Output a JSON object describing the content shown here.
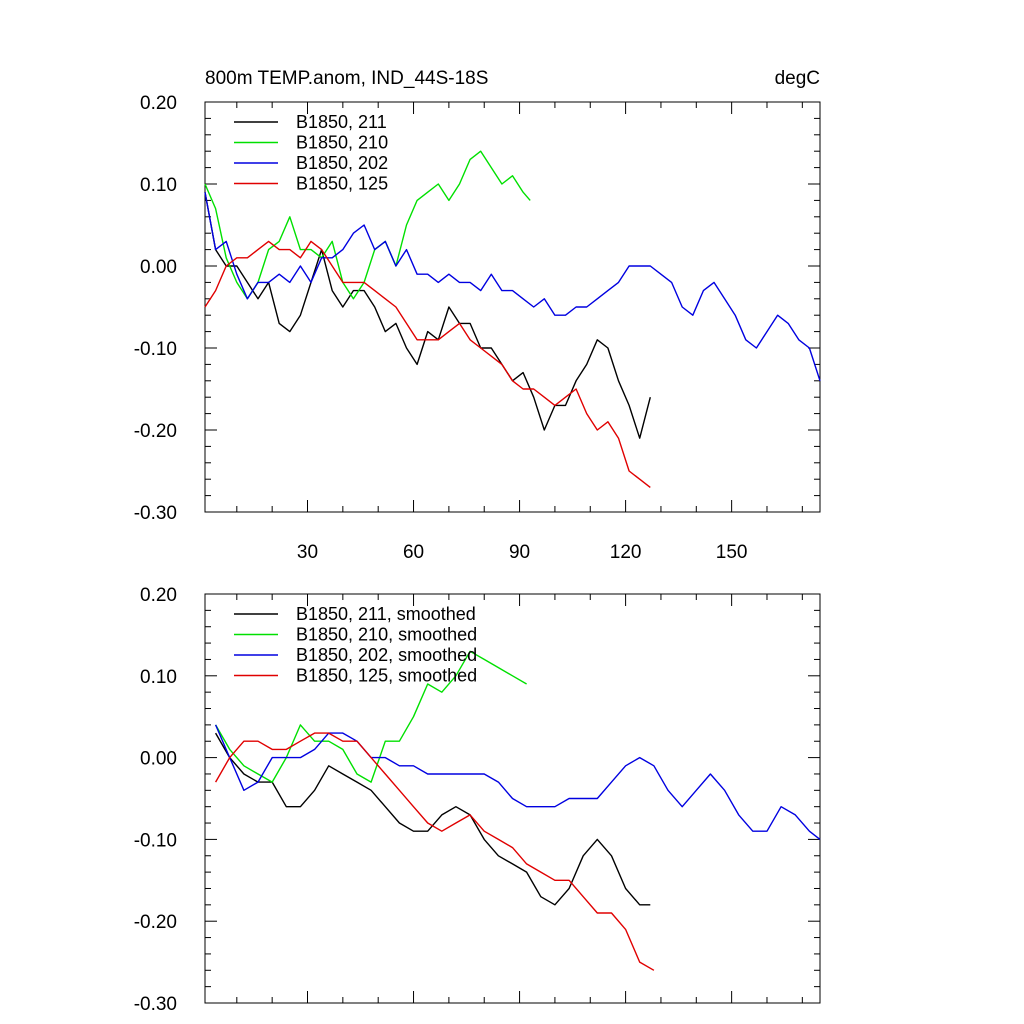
{
  "chart_data": [
    {
      "type": "line",
      "title": "800m TEMP.anom, IND_44S-18S",
      "units": "degC",
      "xlabel": "",
      "ylabel": "",
      "xlim": [
        1,
        175
      ],
      "ylim": [
        -0.3,
        0.2
      ],
      "xticks": [
        30,
        60,
        90,
        120,
        150
      ],
      "xtick_labels": [
        "30",
        "60",
        "90",
        "120",
        "150"
      ],
      "yticks": [
        0.2,
        0.1,
        0.0,
        -0.1,
        -0.2,
        -0.3
      ],
      "ytick_labels": [
        "0.20",
        "0.10",
        "0.00",
        "-0.10",
        "-0.20",
        "-0.30"
      ],
      "legend_position": "top-left",
      "series": [
        {
          "name": "B1850, 211",
          "color": "#000000",
          "x": [
            1,
            4,
            7,
            10,
            13,
            16,
            19,
            22,
            25,
            28,
            31,
            34,
            37,
            40,
            43,
            46,
            49,
            52,
            55,
            58,
            61,
            64,
            67,
            70,
            73,
            76,
            79,
            82,
            85,
            88,
            91,
            94,
            97,
            100,
            103,
            106,
            109,
            112,
            115,
            118,
            121,
            124,
            127
          ],
          "y": [
            0.09,
            0.02,
            0.0,
            0.0,
            -0.02,
            -0.04,
            -0.02,
            -0.07,
            -0.08,
            -0.06,
            -0.02,
            0.02,
            -0.03,
            -0.05,
            -0.03,
            -0.03,
            -0.05,
            -0.08,
            -0.07,
            -0.1,
            -0.12,
            -0.08,
            -0.09,
            -0.05,
            -0.07,
            -0.07,
            -0.1,
            -0.1,
            -0.12,
            -0.14,
            -0.13,
            -0.16,
            -0.2,
            -0.17,
            -0.17,
            -0.14,
            -0.12,
            -0.09,
            -0.1,
            -0.14,
            -0.17,
            -0.21,
            -0.16
          ]
        },
        {
          "name": "B1850, 210",
          "color": "#00e000",
          "x": [
            1,
            4,
            7,
            10,
            13,
            16,
            19,
            22,
            25,
            28,
            31,
            34,
            37,
            40,
            43,
            46,
            49,
            52,
            55,
            58,
            61,
            64,
            67,
            70,
            73,
            76,
            79,
            82,
            85,
            88,
            91,
            93
          ],
          "y": [
            0.1,
            0.07,
            0.01,
            -0.02,
            -0.04,
            -0.02,
            0.02,
            0.03,
            0.06,
            0.02,
            0.02,
            0.01,
            0.03,
            -0.02,
            -0.04,
            -0.02,
            0.02,
            0.03,
            0.0,
            0.05,
            0.08,
            0.09,
            0.1,
            0.08,
            0.1,
            0.13,
            0.14,
            0.12,
            0.1,
            0.11,
            0.09,
            0.08
          ]
        },
        {
          "name": "B1850, 202",
          "color": "#0000e0",
          "x": [
            1,
            4,
            7,
            10,
            13,
            16,
            19,
            22,
            25,
            28,
            31,
            34,
            37,
            40,
            43,
            46,
            49,
            52,
            55,
            58,
            61,
            64,
            67,
            70,
            73,
            76,
            79,
            82,
            85,
            88,
            91,
            94,
            97,
            100,
            103,
            106,
            109,
            112,
            115,
            118,
            121,
            124,
            127,
            130,
            133,
            136,
            139,
            142,
            145,
            148,
            151,
            154,
            157,
            160,
            163,
            166,
            169,
            172,
            175
          ],
          "y": [
            0.09,
            0.02,
            0.03,
            -0.01,
            -0.04,
            -0.02,
            -0.02,
            -0.01,
            -0.02,
            0.0,
            -0.02,
            0.01,
            0.01,
            0.02,
            0.04,
            0.05,
            0.02,
            0.03,
            0.0,
            0.02,
            -0.01,
            -0.01,
            -0.02,
            -0.01,
            -0.02,
            -0.02,
            -0.03,
            -0.01,
            -0.03,
            -0.03,
            -0.04,
            -0.05,
            -0.04,
            -0.06,
            -0.06,
            -0.05,
            -0.05,
            -0.04,
            -0.03,
            -0.02,
            0.0,
            0.0,
            0.0,
            -0.01,
            -0.02,
            -0.05,
            -0.06,
            -0.03,
            -0.02,
            -0.04,
            -0.06,
            -0.09,
            -0.1,
            -0.08,
            -0.06,
            -0.07,
            -0.09,
            -0.1,
            -0.14
          ]
        },
        {
          "name": "B1850, 125",
          "color": "#e00000",
          "x": [
            1,
            4,
            7,
            10,
            13,
            16,
            19,
            22,
            25,
            28,
            31,
            34,
            37,
            40,
            43,
            46,
            49,
            52,
            55,
            58,
            61,
            64,
            67,
            70,
            73,
            76,
            79,
            82,
            85,
            88,
            91,
            94,
            97,
            100,
            103,
            106,
            109,
            112,
            115,
            118,
            121,
            124,
            127
          ],
          "y": [
            -0.05,
            -0.03,
            0.0,
            0.01,
            0.01,
            0.02,
            0.03,
            0.02,
            0.02,
            0.01,
            0.03,
            0.02,
            0.0,
            -0.02,
            -0.02,
            -0.02,
            -0.03,
            -0.04,
            -0.05,
            -0.07,
            -0.09,
            -0.09,
            -0.09,
            -0.08,
            -0.07,
            -0.09,
            -0.1,
            -0.11,
            -0.12,
            -0.14,
            -0.15,
            -0.15,
            -0.16,
            -0.17,
            -0.16,
            -0.15,
            -0.18,
            -0.2,
            -0.19,
            -0.21,
            -0.25,
            -0.26,
            -0.27
          ]
        }
      ]
    },
    {
      "type": "line",
      "title": "",
      "xlabel": "",
      "ylabel": "",
      "xlim": [
        1,
        175
      ],
      "ylim": [
        -0.3,
        0.2
      ],
      "xticks": [
        30,
        60,
        90,
        120,
        150
      ],
      "xtick_labels": [],
      "yticks": [
        0.2,
        0.1,
        0.0,
        -0.1,
        -0.2,
        -0.3
      ],
      "ytick_labels": [
        "0.20",
        "0.10",
        "0.00",
        "-0.10",
        "-0.20",
        "-0.30"
      ],
      "legend_position": "top-left",
      "series": [
        {
          "name": "B1850, 211, smoothed",
          "color": "#000000",
          "x": [
            4,
            8,
            12,
            16,
            20,
            24,
            28,
            32,
            36,
            40,
            44,
            48,
            52,
            56,
            60,
            64,
            68,
            72,
            76,
            80,
            84,
            88,
            92,
            96,
            100,
            104,
            108,
            112,
            116,
            120,
            124,
            127
          ],
          "y": [
            0.03,
            0.0,
            -0.02,
            -0.03,
            -0.03,
            -0.06,
            -0.06,
            -0.04,
            -0.01,
            -0.02,
            -0.03,
            -0.04,
            -0.06,
            -0.08,
            -0.09,
            -0.09,
            -0.07,
            -0.06,
            -0.07,
            -0.1,
            -0.12,
            -0.13,
            -0.14,
            -0.17,
            -0.18,
            -0.16,
            -0.12,
            -0.1,
            -0.12,
            -0.16,
            -0.18,
            -0.18
          ]
        },
        {
          "name": "B1850, 210, smoothed",
          "color": "#00e000",
          "x": [
            4,
            8,
            12,
            16,
            20,
            24,
            28,
            32,
            36,
            40,
            44,
            48,
            52,
            56,
            60,
            64,
            68,
            72,
            76,
            80,
            84,
            88,
            92
          ],
          "y": [
            0.04,
            0.01,
            -0.01,
            -0.02,
            -0.03,
            0.0,
            0.04,
            0.02,
            0.02,
            0.01,
            -0.02,
            -0.03,
            0.02,
            0.02,
            0.05,
            0.09,
            0.08,
            0.1,
            0.13,
            0.12,
            0.11,
            0.1,
            0.09
          ]
        },
        {
          "name": "B1850, 202, smoothed",
          "color": "#0000e0",
          "x": [
            4,
            8,
            12,
            16,
            20,
            24,
            28,
            32,
            36,
            40,
            44,
            48,
            52,
            56,
            60,
            64,
            68,
            72,
            76,
            80,
            84,
            88,
            92,
            96,
            100,
            104,
            108,
            112,
            116,
            120,
            124,
            128,
            132,
            136,
            140,
            144,
            148,
            152,
            156,
            160,
            164,
            168,
            172,
            175
          ],
          "y": [
            0.04,
            0.0,
            -0.04,
            -0.03,
            0.0,
            0.0,
            0.0,
            0.01,
            0.03,
            0.03,
            0.02,
            0.0,
            0.0,
            -0.01,
            -0.01,
            -0.02,
            -0.02,
            -0.02,
            -0.02,
            -0.02,
            -0.03,
            -0.05,
            -0.06,
            -0.06,
            -0.06,
            -0.05,
            -0.05,
            -0.05,
            -0.03,
            -0.01,
            0.0,
            -0.01,
            -0.04,
            -0.06,
            -0.04,
            -0.02,
            -0.04,
            -0.07,
            -0.09,
            -0.09,
            -0.06,
            -0.07,
            -0.09,
            -0.1
          ]
        },
        {
          "name": "B1850, 125, smoothed",
          "color": "#e00000",
          "x": [
            4,
            8,
            12,
            16,
            20,
            24,
            28,
            32,
            36,
            40,
            44,
            48,
            52,
            56,
            60,
            64,
            68,
            72,
            76,
            80,
            84,
            88,
            92,
            96,
            100,
            104,
            108,
            112,
            116,
            120,
            124,
            128
          ],
          "y": [
            -0.03,
            0.0,
            0.02,
            0.02,
            0.01,
            0.01,
            0.02,
            0.03,
            0.03,
            0.02,
            0.02,
            0.0,
            -0.02,
            -0.04,
            -0.06,
            -0.08,
            -0.09,
            -0.08,
            -0.07,
            -0.09,
            -0.1,
            -0.11,
            -0.13,
            -0.14,
            -0.15,
            -0.15,
            -0.17,
            -0.19,
            -0.19,
            -0.21,
            -0.25,
            -0.26
          ]
        }
      ]
    }
  ]
}
